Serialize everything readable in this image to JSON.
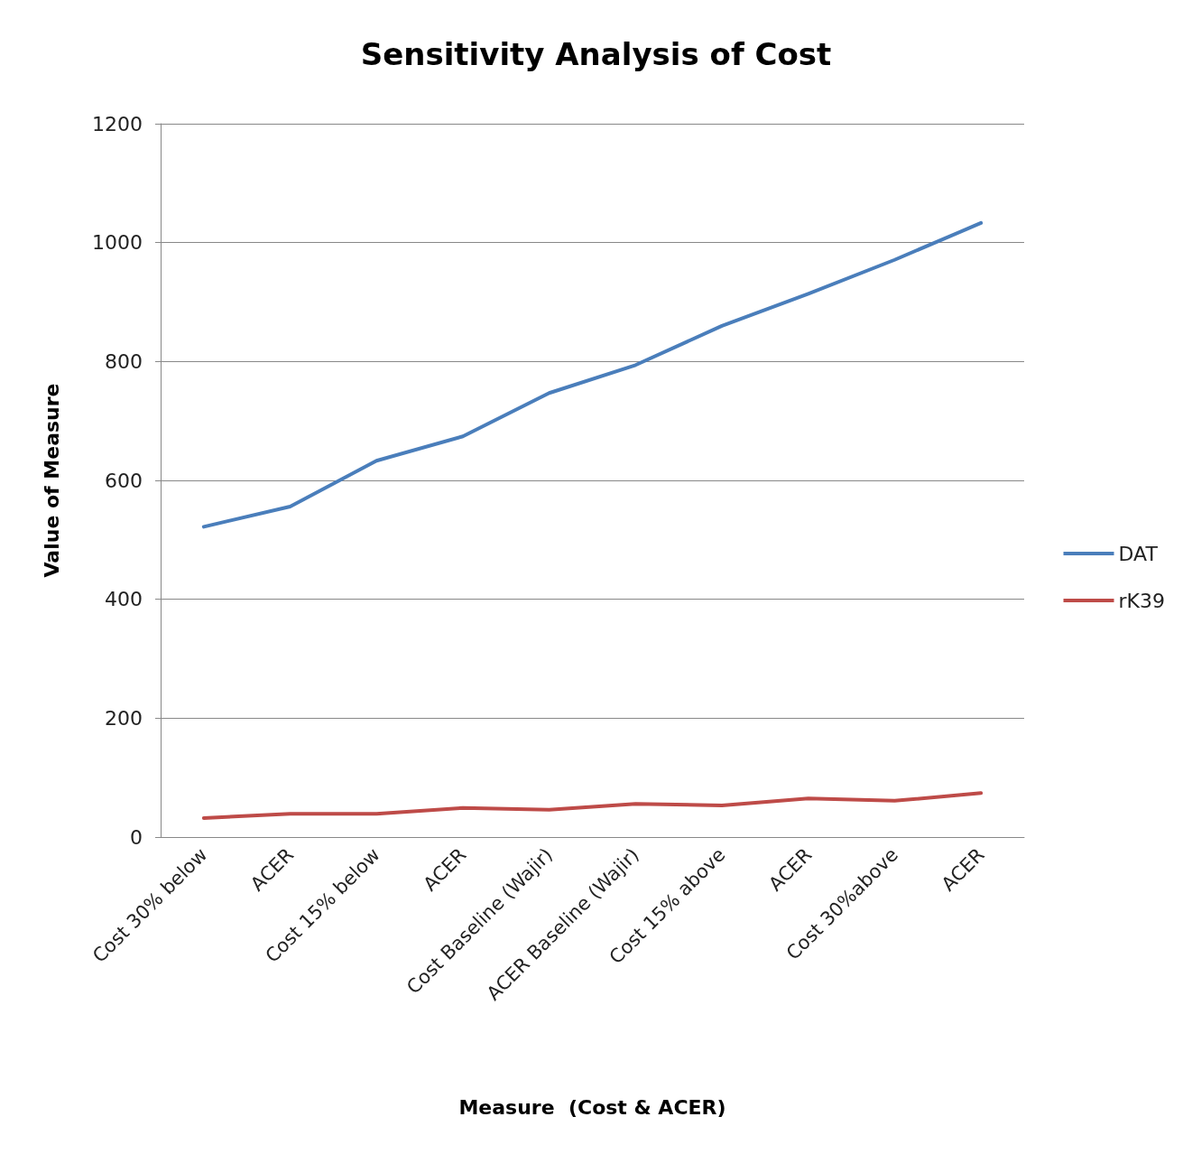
{
  "chart_data": {
    "type": "line",
    "title": "Sensitivity Analysis of Cost",
    "xlabel": "Measure  (Cost & ACER)",
    "ylabel": "Value of Measure",
    "categories": [
      "Cost 30% below",
      "ACER",
      "Cost 15% below",
      "ACER",
      "Cost Baseline (Wajir)",
      "ACER Baseline (Wajir)",
      "Cost 15% above",
      "ACER",
      "Cost 30%above",
      "ACER"
    ],
    "series": [
      {
        "name": "DAT",
        "color": "#4a7ebb",
        "values": [
          522,
          556,
          633,
          674,
          747,
          794,
          860,
          914,
          971,
          1033
        ]
      },
      {
        "name": "rK39",
        "color": "#be4b48",
        "values": [
          32,
          39,
          39,
          49,
          46,
          56,
          53,
          65,
          61,
          74
        ]
      }
    ],
    "ylim": [
      0,
      1200
    ],
    "yticks": [
      0,
      200,
      400,
      600,
      800,
      1000,
      1200
    ],
    "grid": "y",
    "legend": "right",
    "marker": "none",
    "line_style": "solid"
  }
}
